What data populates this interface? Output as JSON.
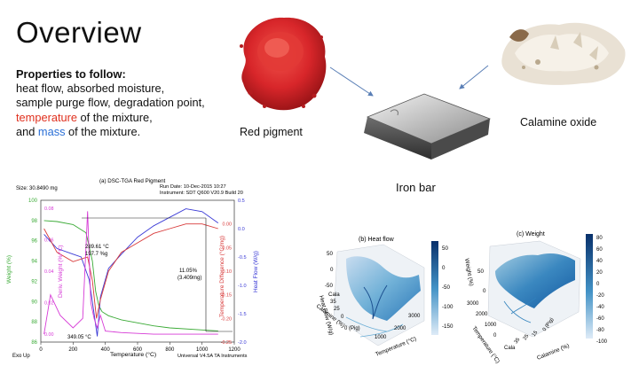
{
  "slide": {
    "title": "Overview",
    "properties": {
      "heading": "Properties to follow:",
      "line1": "heat flow, absorbed moisture,",
      "line2": "sample purge flow, degradation point,",
      "line3_em": "temperature",
      "line3_rest": " of the mixture,",
      "line4_pre": "and ",
      "line4_em": "mass",
      "line4_rest": " of the mixture."
    },
    "images": {
      "red_pigment": "Red pigment",
      "calamine_oxide": "Calamine oxide",
      "iron_bar": "Iron bar"
    },
    "colors": {
      "red": "#e0301e",
      "blue": "#2a6fd6",
      "pigment": "#d8262a"
    }
  },
  "chart_data": [
    {
      "type": "line",
      "title": "(a) DSC-TGA Red Pigment",
      "header_left": "Size: 30.8490 mg",
      "header_right1": "Run Date: 10-Dec-2015 10:27",
      "header_right2": "Instrument: SDT Q600 V20.9 Build 20",
      "xlabel": "Temperature (°C)",
      "ylabel_weight": "Weight (%)",
      "ylabel_deriv": "Deriv. Weight (%/°C)",
      "ylabel_tempdiff": "Temperature Difference (°C/mg)",
      "ylabel_heatflow": "Heat Flow (W/g)",
      "footer_left": "Exo Up",
      "footer_right": "Universal V4.5A TA Instruments",
      "xticks": [
        "0",
        "200",
        "400",
        "600",
        "800",
        "1000",
        "1200"
      ],
      "yticks_weight": [
        "86",
        "88",
        "90",
        "92",
        "94",
        "96",
        "98",
        "100"
      ],
      "yticks_deriv": [
        "0.00",
        "0.02",
        "0.04",
        "0.06",
        "0.08"
      ],
      "yticks_tempdiff": [
        "0.00",
        "-0.05",
        "-0.10",
        "-0.15",
        "-0.20",
        "-0.25"
      ],
      "yticks_heatflow": [
        "-2.0",
        "-1.5",
        "-1.0",
        "-0.5",
        "0.0",
        "0.5"
      ],
      "annotations": {
        "peak_c": "289.61 °C",
        "peak_pct": "197.7 %g",
        "min_c": "349.05 °C",
        "loss_pct": "11.05%",
        "loss_mg": "(3.409mg)"
      },
      "series": [
        {
          "name": "Weight",
          "color": "#3aaa35",
          "x": [
            20,
            100,
            200,
            280,
            320,
            340,
            360,
            380,
            420,
            500,
            600,
            700,
            800,
            1000,
            1100
          ],
          "y": [
            98.0,
            97.9,
            97.6,
            96.8,
            94.0,
            91.0,
            89.6,
            89.0,
            88.6,
            88.2,
            87.9,
            87.6,
            87.4,
            87.2,
            87.1
          ]
        },
        {
          "name": "Heat Flow",
          "color": "#3a3ad6",
          "x": [
            20,
            100,
            200,
            250,
            300,
            330,
            350,
            370,
            420,
            500,
            600,
            700,
            800,
            900,
            1000,
            1100
          ],
          "y": [
            -0.1,
            -0.35,
            -0.45,
            -0.5,
            -0.9,
            -1.5,
            -1.9,
            -1.2,
            -0.7,
            -0.45,
            -0.15,
            0.05,
            0.2,
            0.35,
            0.3,
            0.1
          ]
        },
        {
          "name": "Temperature Difference",
          "color": "#d83a3a",
          "x": [
            20,
            100,
            200,
            290,
            320,
            345,
            370,
            420,
            500,
            600,
            700,
            800,
            900,
            1000,
            1100
          ],
          "y": [
            -0.01,
            -0.06,
            -0.08,
            -0.07,
            -0.12,
            -0.2,
            -0.16,
            -0.1,
            -0.06,
            -0.04,
            -0.02,
            -0.01,
            0.0,
            0.0,
            -0.01
          ]
        },
        {
          "name": "Deriv. Weight",
          "color": "#d63ad6",
          "x": [
            20,
            60,
            120,
            200,
            260,
            290,
            310,
            330,
            350,
            370,
            400,
            500,
            700,
            900,
            1100
          ],
          "y": [
            0.0,
            0.025,
            0.012,
            0.004,
            0.01,
            0.078,
            0.02,
            0.01,
            0.004,
            0.012,
            0.002,
            0.001,
            0.0,
            0.0,
            0.0
          ]
        }
      ]
    },
    {
      "type": "surface3d",
      "title": "(b) Heat flow",
      "zlabel": "Heat Flow (W/g)",
      "xlabel": "Temperature (°C)",
      "ylabel": "Calamine (%)",
      "ylabel2": "Cala",
      "xticks": [
        "1000",
        "2000",
        "3000"
      ],
      "yticks": [
        "0 (Pig)",
        "0",
        "25",
        "35"
      ],
      "zticks": [
        "50",
        "0",
        "-50"
      ],
      "colorbar_ticks": [
        "50",
        "0",
        "-50",
        "-100",
        "-150"
      ]
    },
    {
      "type": "surface3d",
      "title": "(c) Weight",
      "zlabel": "Weight (%)",
      "xlabel": "Calamine (%)",
      "ylabel": "Temperature (°C)",
      "ylabel2": "Cala",
      "xticks": [
        "0 (Pig)",
        "15",
        "25",
        "35"
      ],
      "yticks": [
        "3000",
        "2000",
        "1000",
        "0"
      ],
      "zticks": [
        "50",
        "0"
      ],
      "colorbar_ticks": [
        "80",
        "60",
        "40",
        "20",
        "0",
        "-20",
        "-40",
        "-60",
        "-80",
        "-100"
      ]
    }
  ]
}
